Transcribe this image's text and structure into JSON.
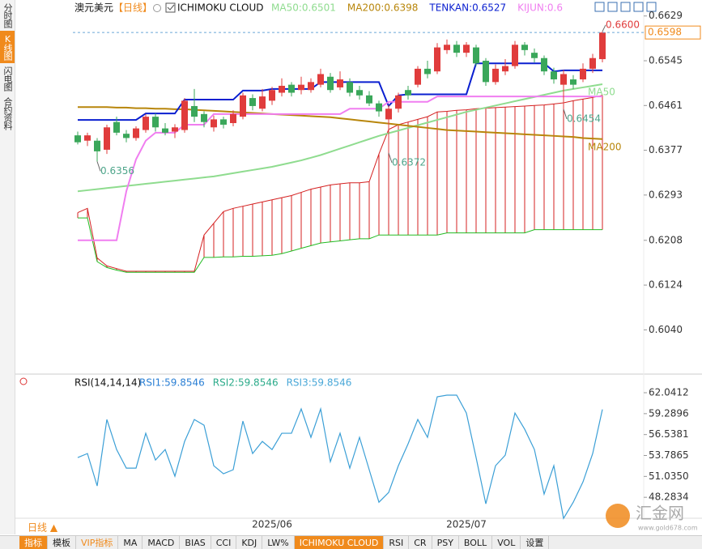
{
  "sidebar": {
    "tabs": [
      "分时图",
      "K线图",
      "闪电图",
      "合约资料"
    ]
  },
  "header": {
    "symbol": "澳元美元",
    "period": "【日线】",
    "indicator": "ICHIMOKU CLOUD"
  },
  "chart_data": [
    {
      "type": "candlestick",
      "up_color": "#e03c3c",
      "down_color": "#3aa75a",
      "low_label_color": "#4da58a",
      "categories": [
        null,
        null,
        null,
        null,
        null,
        null,
        null,
        null,
        null,
        null,
        null,
        null,
        null,
        null,
        null,
        null,
        null,
        null,
        null,
        null,
        "2025/06",
        null,
        null,
        null,
        null,
        null,
        null,
        null,
        null,
        null,
        null,
        null,
        null,
        null,
        null,
        null,
        null,
        null,
        null,
        null,
        "2025/07",
        null,
        null,
        null,
        null,
        null,
        null,
        null,
        null,
        null,
        null,
        null,
        null,
        null,
        null
      ],
      "open": [
        0.6405,
        0.6395,
        0.6395,
        0.6378,
        0.643,
        0.6408,
        0.64,
        0.6415,
        0.644,
        0.6418,
        0.6412,
        0.6415,
        0.646,
        0.6445,
        0.642,
        0.6435,
        0.6428,
        0.644,
        0.6475,
        0.6455,
        0.647,
        0.6485,
        0.65,
        0.649,
        0.649,
        0.65,
        0.6515,
        0.6495,
        0.6505,
        0.649,
        0.648,
        0.6465,
        0.6435,
        0.6455,
        0.649,
        0.65,
        0.653,
        0.6525,
        0.6565,
        0.6575,
        0.656,
        0.657,
        0.6545,
        0.6505,
        0.6525,
        0.6535,
        0.6575,
        0.656,
        0.655,
        0.6525,
        0.65,
        0.651,
        0.651,
        0.653,
        0.6548
      ],
      "high": [
        0.6412,
        0.641,
        0.64,
        0.6425,
        0.644,
        0.6415,
        0.6422,
        0.6445,
        0.6446,
        0.6428,
        0.6426,
        0.6475,
        0.6492,
        0.645,
        0.6442,
        0.644,
        0.6452,
        0.6485,
        0.6482,
        0.6492,
        0.6496,
        0.6512,
        0.6505,
        0.6515,
        0.6512,
        0.653,
        0.6522,
        0.6525,
        0.6512,
        0.6498,
        0.6488,
        0.647,
        0.6462,
        0.6485,
        0.6498,
        0.6535,
        0.6545,
        0.6578,
        0.6585,
        0.6582,
        0.658,
        0.6575,
        0.655,
        0.6538,
        0.6548,
        0.6582,
        0.658,
        0.6568,
        0.6555,
        0.6532,
        0.6528,
        0.6518,
        0.654,
        0.6558,
        0.66
      ],
      "low": [
        0.6388,
        0.6385,
        0.6356,
        0.637,
        0.6405,
        0.6392,
        0.6395,
        0.641,
        0.6412,
        0.6405,
        0.64,
        0.641,
        0.643,
        0.642,
        0.6412,
        0.6418,
        0.6422,
        0.6435,
        0.6452,
        0.645,
        0.6462,
        0.6478,
        0.6478,
        0.6482,
        0.6485,
        0.6495,
        0.6485,
        0.649,
        0.6478,
        0.6472,
        0.646,
        0.644,
        0.6372,
        0.6448,
        0.6472,
        0.6495,
        0.6512,
        0.652,
        0.6558,
        0.6552,
        0.6552,
        0.6535,
        0.6498,
        0.65,
        0.6518,
        0.653,
        0.6555,
        0.6542,
        0.6518,
        0.6502,
        0.6454,
        0.6492,
        0.6505,
        0.6522,
        0.6542
      ],
      "close": [
        0.6392,
        0.6405,
        0.6375,
        0.642,
        0.641,
        0.64,
        0.6418,
        0.644,
        0.642,
        0.641,
        0.642,
        0.647,
        0.644,
        0.643,
        0.6435,
        0.6425,
        0.6445,
        0.648,
        0.646,
        0.6478,
        0.649,
        0.6498,
        0.6485,
        0.65,
        0.6505,
        0.652,
        0.649,
        0.651,
        0.6485,
        0.648,
        0.6465,
        0.645,
        0.6455,
        0.648,
        0.648,
        0.653,
        0.652,
        0.657,
        0.6575,
        0.656,
        0.6575,
        0.654,
        0.6505,
        0.653,
        0.6535,
        0.6575,
        0.6565,
        0.655,
        0.6525,
        0.651,
        0.652,
        0.65,
        0.653,
        0.655,
        0.6598
      ],
      "series": [
        {
          "name": "MA50",
          "legend": "MA50:0.6501",
          "color": "#8fdc8f",
          "end_label": true,
          "values": [
            0.63,
            0.6302,
            0.6304,
            0.6306,
            0.6308,
            0.631,
            0.6312,
            0.6314,
            0.6316,
            0.6318,
            0.632,
            0.6322,
            0.6324,
            0.6326,
            0.6328,
            0.6331,
            0.6334,
            0.6337,
            0.634,
            0.6343,
            0.6346,
            0.635,
            0.6354,
            0.6358,
            0.6363,
            0.6368,
            0.6374,
            0.638,
            0.6386,
            0.6392,
            0.6398,
            0.6404,
            0.6409,
            0.6414,
            0.6419,
            0.6424,
            0.6429,
            0.6434,
            0.6439,
            0.6444,
            0.6449,
            0.6453,
            0.6457,
            0.6461,
            0.6465,
            0.6469,
            0.6473,
            0.6477,
            0.6481,
            0.6485,
            0.6489,
            0.6492,
            0.6495,
            0.6498,
            0.6501
          ]
        },
        {
          "name": "MA200",
          "legend": "MA200:0.6398",
          "color": "#b8860b",
          "end_label": true,
          "values": [
            0.6458,
            0.6458,
            0.6458,
            0.6458,
            0.6457,
            0.6457,
            0.6456,
            0.6456,
            0.6455,
            0.6455,
            0.6454,
            0.6454,
            0.6453,
            0.6452,
            0.6451,
            0.645,
            0.6449,
            0.6448,
            0.6447,
            0.6446,
            0.6445,
            0.6444,
            0.6443,
            0.6442,
            0.6441,
            0.644,
            0.6439,
            0.6437,
            0.6435,
            0.6433,
            0.6431,
            0.6429,
            0.6427,
            0.6425,
            0.6423,
            0.6421,
            0.6419,
            0.6417,
            0.6415,
            0.6414,
            0.6413,
            0.6412,
            0.6411,
            0.641,
            0.6409,
            0.6408,
            0.6407,
            0.6406,
            0.6405,
            0.6404,
            0.6403,
            0.6402,
            0.64,
            0.6399,
            0.6398
          ]
        },
        {
          "name": "TENKAN",
          "legend": "TENKAN:0.6527",
          "color": "#0a1fd0",
          "end_label": false,
          "values": [
            0.6434,
            0.6434,
            0.6434,
            0.6434,
            0.6434,
            0.6434,
            0.6434,
            0.6446,
            0.6446,
            0.6446,
            0.6446,
            0.6472,
            0.6472,
            0.6472,
            0.6472,
            0.6472,
            0.6472,
            0.6489,
            0.6489,
            0.6489,
            0.6492,
            0.6492,
            0.6492,
            0.6492,
            0.6492,
            0.6505,
            0.6505,
            0.6505,
            0.6505,
            0.6505,
            0.6505,
            0.6505,
            0.646,
            0.648,
            0.6482,
            0.6482,
            0.6482,
            0.6482,
            0.6482,
            0.6482,
            0.6482,
            0.654,
            0.654,
            0.654,
            0.654,
            0.654,
            0.654,
            0.654,
            0.654,
            0.6525,
            0.6527,
            0.6527,
            0.6527,
            0.6527,
            0.6527
          ]
        },
        {
          "name": "KIJUN",
          "legend": "KIJUN:0.6",
          "color": "#f07ef0",
          "end_label": false,
          "values": [
            0.6208,
            0.6208,
            0.6208,
            0.6208,
            0.6208,
            0.63,
            0.636,
            0.6395,
            0.641,
            0.641,
            0.641,
            0.6425,
            0.6425,
            0.6425,
            0.6445,
            0.6445,
            0.6445,
            0.6445,
            0.6445,
            0.6445,
            0.6445,
            0.6445,
            0.6445,
            0.6445,
            0.6445,
            0.6445,
            0.6445,
            0.6445,
            0.6455,
            0.6455,
            0.6455,
            0.6455,
            0.6468,
            0.6468,
            0.6468,
            0.6468,
            0.6468,
            0.6478,
            0.6478,
            0.6478,
            0.6478,
            0.6478,
            0.6478,
            0.6478,
            0.6478,
            0.6478,
            0.6478,
            0.6478,
            0.6478,
            0.6478,
            0.6478,
            0.6478,
            0.6478,
            0.6478,
            0.6478
          ]
        }
      ],
      "cloud": {
        "span_a_color": "#d42020",
        "span_b_color": "#22bb22",
        "span_a": [
          0.626,
          0.6268,
          0.6175,
          0.616,
          0.6155,
          0.615,
          0.615,
          0.615,
          0.615,
          0.615,
          0.615,
          0.615,
          0.615,
          0.6218,
          0.624,
          0.6262,
          0.6268,
          0.6272,
          0.6276,
          0.628,
          0.6284,
          0.6288,
          0.6292,
          0.6298,
          0.6304,
          0.6308,
          0.6312,
          0.6314,
          0.6316,
          0.6316,
          0.6318,
          0.637,
          0.6416,
          0.6425,
          0.643,
          0.6435,
          0.644,
          0.6449,
          0.645,
          0.6452,
          0.6453,
          0.6455,
          0.6456,
          0.6457,
          0.6458,
          0.6459,
          0.646,
          0.6461,
          0.6462,
          0.6464,
          0.6466,
          0.647,
          0.6473,
          0.6476,
          0.648
        ],
        "span_b": [
          0.625,
          0.625,
          0.6168,
          0.6157,
          0.6152,
          0.6148,
          0.6148,
          0.6148,
          0.6148,
          0.6148,
          0.6148,
          0.6148,
          0.6148,
          0.6176,
          0.6176,
          0.6177,
          0.6177,
          0.6178,
          0.6178,
          0.6179,
          0.618,
          0.6183,
          0.6188,
          0.6193,
          0.6198,
          0.6203,
          0.6205,
          0.6207,
          0.6209,
          0.6211,
          0.6211,
          0.6218,
          0.6218,
          0.6218,
          0.6218,
          0.6218,
          0.6218,
          0.6218,
          0.6222,
          0.6222,
          0.6222,
          0.6222,
          0.6222,
          0.6222,
          0.6222,
          0.6222,
          0.6222,
          0.6228,
          0.6228,
          0.6228,
          0.6228,
          0.6228,
          0.6228,
          0.6228,
          0.6228
        ]
      },
      "annotations": [
        0.6356,
        0.6372,
        0.6454,
        {
          "value": 0.66,
          "label": "0.6600"
        }
      ],
      "last_price": 0.6598,
      "ylim": [
        0.596,
        0.6659
      ],
      "yticks": [
        0.6629,
        0.6545,
        0.6461,
        0.6377,
        0.6293,
        0.6208,
        0.6124,
        {
          "value": 0.604,
          "label": "0.6040"
        }
      ]
    },
    {
      "type": "line",
      "title": "RSI(14,14,14)",
      "legend": [
        {
          "text": "RSI1:59.8546",
          "color": "#2a7fd4"
        },
        {
          "text": "RSI2:59.8546",
          "color": "#2bab8a"
        },
        {
          "text": "RSI3:59.8546",
          "color": "#4aa8d8"
        }
      ],
      "series": [
        {
          "name": "RSI1",
          "color": "#3b9fd6",
          "values": [
            53.51,
            54.04,
            49.78,
            58.52,
            54.57,
            52.12,
            52.12,
            56.71,
            53.19,
            54.57,
            51.06,
            55.64,
            58.52,
            57.77,
            52.44,
            51.38,
            51.91,
            58.31,
            54.04,
            55.64,
            54.57,
            56.71,
            56.71,
            59.91,
            56.17,
            59.91,
            52.97,
            56.71,
            52.12,
            56.17,
            51.91,
            47.64,
            48.92,
            52.44,
            55.32,
            58.52,
            56.17,
            61.51,
            61.72,
            61.72,
            59.37,
            53.51,
            47.43,
            52.44,
            53.83,
            59.37,
            57.24,
            54.57,
            48.71,
            52.44,
            45.51,
            47.64,
            50.31,
            54.04,
            59.85
          ]
        }
      ],
      "ylim": [
        45,
        63.64
      ],
      "yticks": [
        62.0412,
        59.2896,
        56.5381,
        53.7865,
        {
          "value": 51.035,
          "label": "51.0350"
        },
        48.2834
      ]
    }
  ],
  "footer": {
    "period_button": "日线 ▲",
    "tabs": [
      "指标",
      "模板",
      "VIP指标",
      "MA",
      "MACD",
      "BIAS",
      "CCI",
      "KDJ",
      "LW%",
      "ICHIMOKU CLOUD",
      "RSI",
      "CR",
      "PSY",
      "BOLL",
      "VOL",
      "设置"
    ]
  },
  "watermark": {
    "brand": "汇金网",
    "url": "www.gold678.com"
  }
}
